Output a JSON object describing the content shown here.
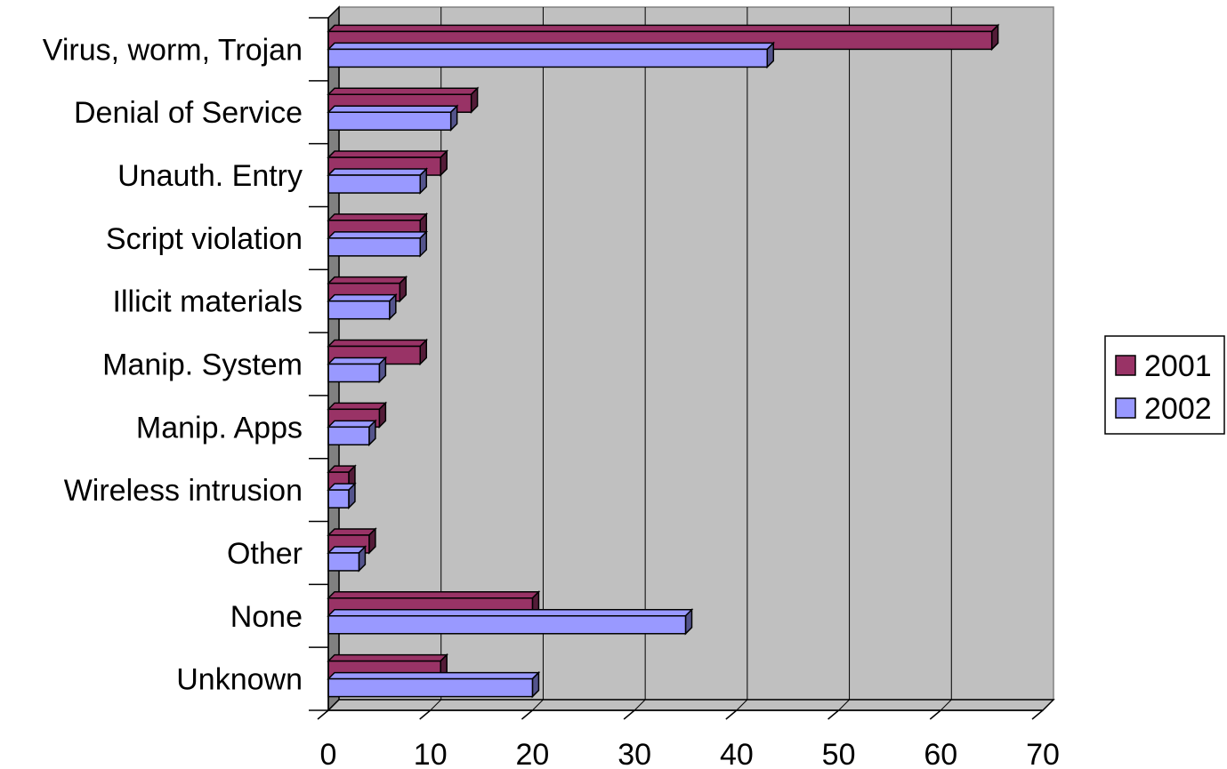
{
  "chart_data": {
    "type": "bar",
    "orientation": "horizontal",
    "style": "3d",
    "categories": [
      "Virus, worm, Trojan",
      "Denial of Service",
      "Unauth. Entry",
      "Script violation",
      "Illicit materials",
      "Manip. System",
      "Manip. Apps",
      "Wireless intrusion",
      "Other",
      "None",
      "Unknown"
    ],
    "series": [
      {
        "name": "2001",
        "color": "#993366",
        "values": [
          65,
          14,
          11,
          9,
          7,
          9,
          5,
          2,
          4,
          20,
          11
        ]
      },
      {
        "name": "2002",
        "color": "#9999ff",
        "values": [
          43,
          12,
          9,
          9,
          6,
          5,
          4,
          2,
          3,
          35,
          20
        ]
      }
    ],
    "xlim": [
      0,
      70
    ],
    "xticks": [
      0,
      10,
      20,
      30,
      40,
      50,
      60,
      70
    ],
    "title": "",
    "xlabel": "",
    "ylabel": "",
    "grid": "vertical",
    "legend_position": "right",
    "plot_background": "#c0c0c0"
  }
}
